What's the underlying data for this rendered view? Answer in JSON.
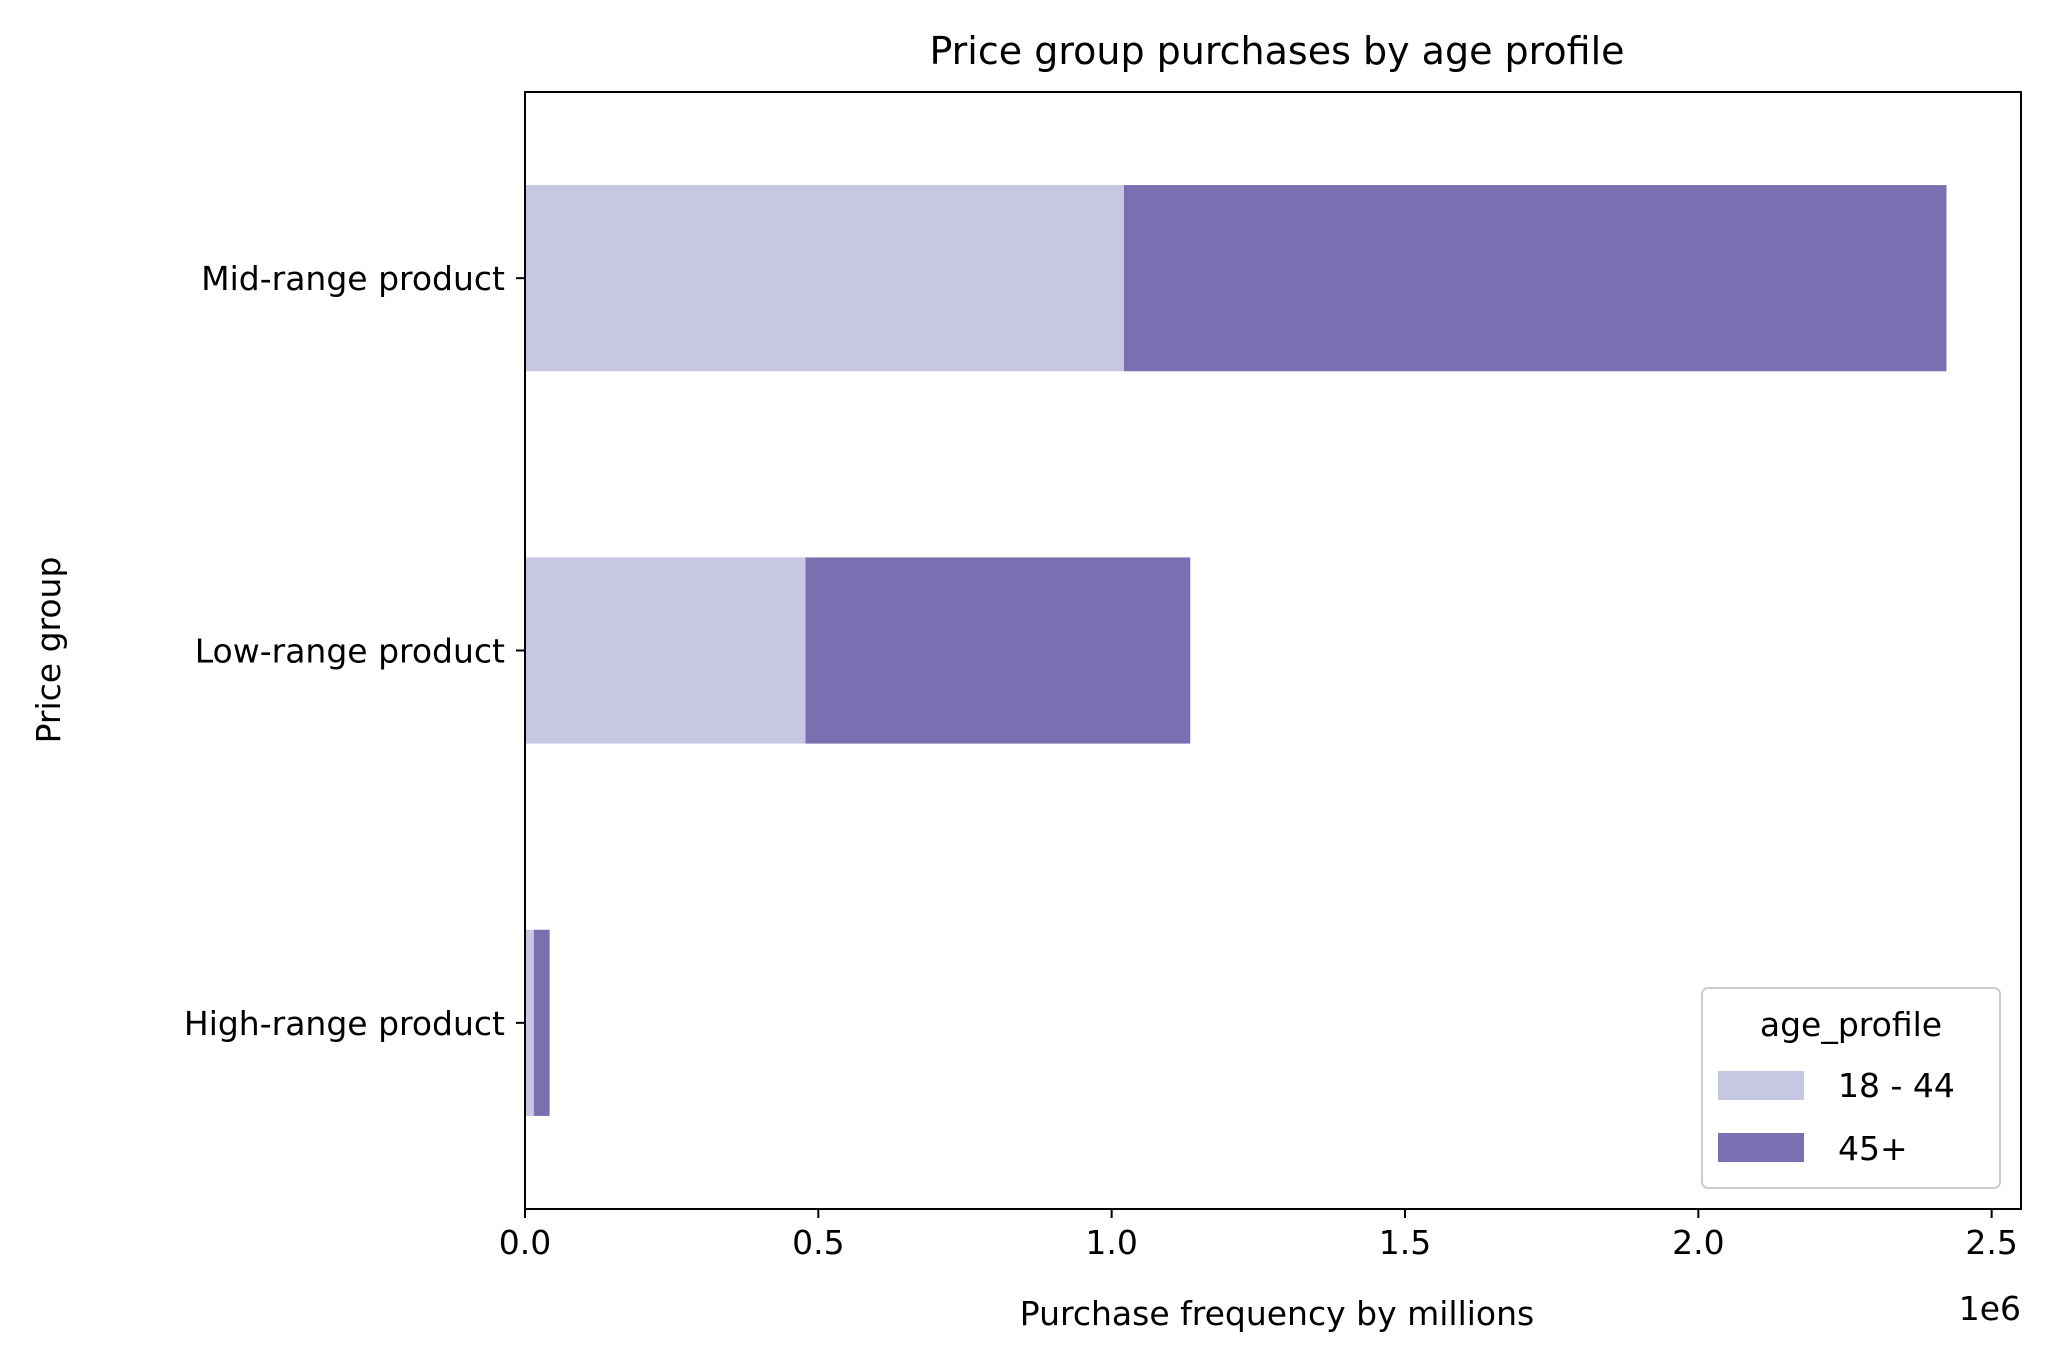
{
  "chart_data": {
    "type": "bar",
    "orientation": "horizontal",
    "stacked": true,
    "title": "Price group purchases by age profile",
    "xlabel": "Purchase frequency by millions",
    "ylabel": "Price group",
    "x_offset_label": "1e6",
    "categories": [
      "High-range product",
      "Low-range product",
      "Mid-range product"
    ],
    "series": [
      {
        "name": "18 - 44",
        "color": "#c6c7e2",
        "values": [
          15000,
          478000,
          1021000
        ]
      },
      {
        "name": "45+",
        "color": "#7a6fb1",
        "values": [
          27000,
          656000,
          1402000
        ]
      }
    ],
    "xlim": [
      0,
      2550000
    ],
    "xticks": [
      0,
      500000,
      1000000,
      1500000,
      2000000,
      2500000
    ],
    "xtick_labels": [
      "0.0",
      "0.5",
      "1.0",
      "1.5",
      "2.0",
      "2.5"
    ],
    "legend": {
      "title": "age_profile",
      "position": "lower-right"
    },
    "grid": false
  }
}
